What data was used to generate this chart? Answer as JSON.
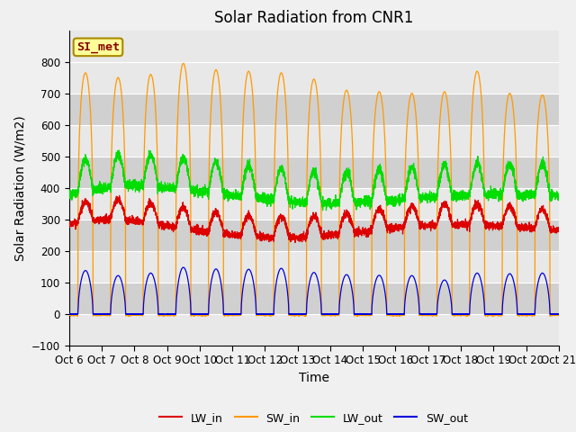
{
  "title": "Solar Radiation from CNR1",
  "ylabel": "Solar Radiation (W/m2)",
  "xlabel": "Time",
  "ylim": [
    -100,
    900
  ],
  "yticks": [
    -100,
    0,
    100,
    200,
    300,
    400,
    500,
    600,
    700,
    800
  ],
  "xtick_labels": [
    "Oct 6",
    "Oct 7",
    "Oct 8",
    "Oct 9",
    "Oct 10Oct 11Oct 12Oct 13Oct 14Oct 15Oct 16Oct 17Oct 18Oct 19Oct 20Oct 21"
  ],
  "xtick_labels_all": [
    "Oct 6",
    "Oct 7",
    "Oct 8",
    "Oct 9",
    "Oct 10",
    "Oct 11",
    "Oct 12",
    "Oct 13",
    "Oct 14",
    "Oct 15",
    "Oct 16",
    "Oct 17",
    "Oct 18",
    "Oct 19",
    "Oct 20",
    "Oct 21"
  ],
  "colors": {
    "LW_in": "#dd0000",
    "SW_in": "#ff9900",
    "LW_out": "#00dd00",
    "SW_out": "#0000dd"
  },
  "legend_label": "SI_met",
  "legend_box_facecolor": "#ffff99",
  "legend_box_edgecolor": "#aa8800",
  "legend_text_color": "#880000",
  "plot_bg_light": "#e8e8e8",
  "plot_bg_dark": "#d0d0d0",
  "fig_bg": "#f0f0f0",
  "grid_color": "#ffffff",
  "title_fontsize": 12,
  "axis_label_fontsize": 10,
  "tick_fontsize": 8.5,
  "n_days": 15,
  "pts_per_day": 288,
  "sw_in_peaks": [
    765,
    750,
    760,
    795,
    775,
    770,
    765,
    745,
    710,
    705,
    700,
    705,
    770,
    700,
    695
  ],
  "sw_out_peaks": [
    138,
    122,
    130,
    148,
    143,
    142,
    145,
    132,
    125,
    123,
    122,
    108,
    130,
    128,
    130
  ],
  "lw_in_base_x": [
    0,
    1,
    2,
    3,
    4,
    5,
    6,
    7,
    8,
    9,
    10,
    11,
    12,
    13,
    14,
    15
  ],
  "lw_in_base_y": [
    300,
    315,
    310,
    295,
    280,
    265,
    260,
    258,
    265,
    275,
    290,
    295,
    300,
    295,
    288,
    280
  ],
  "lw_out_base_x": [
    0,
    1,
    2,
    3,
    4,
    5,
    6,
    7,
    8,
    9,
    10,
    11,
    12,
    13,
    14,
    15
  ],
  "lw_out_base_y": [
    380,
    400,
    410,
    400,
    390,
    375,
    368,
    355,
    350,
    355,
    360,
    370,
    375,
    380,
    375,
    375
  ]
}
